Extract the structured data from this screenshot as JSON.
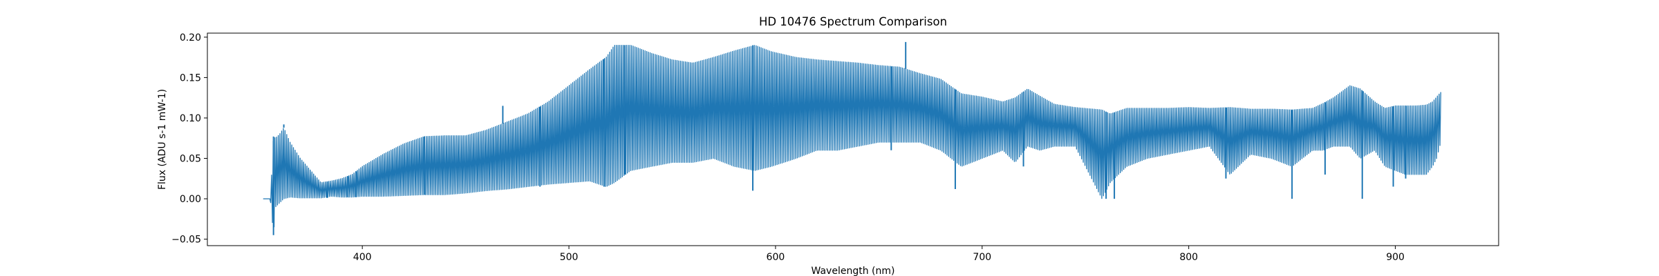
{
  "chart_data": {
    "type": "line",
    "title": "HD 10476 Spectrum Comparison",
    "xlabel": "Wavelength (nm)",
    "ylabel": "Flux (ADU s-1 mW-1)",
    "xlim": [
      325,
      950
    ],
    "ylim": [
      -0.058,
      0.205
    ],
    "xticks": [
      400,
      500,
      600,
      700,
      800,
      900
    ],
    "yticks": [
      -0.05,
      0.0,
      0.05,
      0.1,
      0.15,
      0.2
    ],
    "ytick_labels": [
      "−0.05",
      "0.00",
      "0.05",
      "0.10",
      "0.15",
      "0.20"
    ],
    "grid": false,
    "line_color": "#1f77b4",
    "series": [
      {
        "name": "",
        "envelope": {
          "wavelength_nm": [
            352,
            355.5,
            357,
            358,
            360,
            362,
            365,
            370,
            375,
            380,
            385,
            390,
            395,
            400,
            410,
            420,
            430,
            440,
            450,
            460,
            470,
            480,
            490,
            500,
            510,
            518,
            522,
            530,
            540,
            550,
            560,
            570,
            580,
            590,
            598,
            610,
            620,
            630,
            640,
            650,
            660,
            670,
            680,
            690,
            700,
            710,
            716,
            722,
            728,
            735,
            745,
            758,
            762,
            770,
            780,
            790,
            800,
            810,
            820,
            830,
            840,
            850,
            860,
            865,
            870,
            878,
            883,
            890,
            895,
            900,
            905,
            910,
            915,
            918,
            920,
            922
          ],
          "flux_upper": [
            0.0,
            0.0,
            0.077,
            0.075,
            0.08,
            0.088,
            0.07,
            0.05,
            0.035,
            0.02,
            0.022,
            0.025,
            0.03,
            0.04,
            0.055,
            0.068,
            0.077,
            0.078,
            0.078,
            0.085,
            0.095,
            0.105,
            0.12,
            0.14,
            0.16,
            0.175,
            0.19,
            0.19,
            0.18,
            0.172,
            0.168,
            0.175,
            0.183,
            0.19,
            0.182,
            0.175,
            0.172,
            0.17,
            0.168,
            0.165,
            0.163,
            0.155,
            0.148,
            0.13,
            0.126,
            0.12,
            0.125,
            0.136,
            0.127,
            0.117,
            0.113,
            0.11,
            0.105,
            0.112,
            0.112,
            0.112,
            0.113,
            0.112,
            0.113,
            0.111,
            0.111,
            0.11,
            0.112,
            0.118,
            0.125,
            0.14,
            0.136,
            0.12,
            0.112,
            0.115,
            0.115,
            0.115,
            0.116,
            0.12,
            0.126,
            0.132
          ],
          "flux_lower": [
            0.0,
            0.0,
            -0.045,
            -0.01,
            -0.005,
            0.0,
            0.002,
            0.001,
            0.001,
            0.001,
            0.003,
            0.002,
            0.002,
            0.003,
            0.003,
            0.004,
            0.005,
            0.005,
            0.007,
            0.01,
            0.012,
            0.015,
            0.018,
            0.02,
            0.022,
            0.015,
            0.02,
            0.035,
            0.04,
            0.045,
            0.045,
            0.05,
            0.04,
            0.035,
            0.04,
            0.05,
            0.06,
            0.06,
            0.065,
            0.07,
            0.07,
            0.07,
            0.06,
            0.04,
            0.05,
            0.06,
            0.045,
            0.065,
            0.06,
            0.065,
            0.065,
            0.0,
            0.02,
            0.04,
            0.05,
            0.055,
            0.06,
            0.065,
            0.03,
            0.055,
            0.05,
            0.04,
            0.06,
            0.06,
            0.065,
            0.065,
            0.05,
            0.06,
            0.04,
            0.035,
            0.03,
            0.03,
            0.03,
            0.04,
            0.05,
            0.07
          ]
        },
        "absorption_lines": [
          {
            "wavelength_nm": 357,
            "flux": -0.045
          },
          {
            "wavelength_nm": 383,
            "flux": 0.001
          },
          {
            "wavelength_nm": 393,
            "flux": 0.002
          },
          {
            "wavelength_nm": 397,
            "flux": 0.002
          },
          {
            "wavelength_nm": 430,
            "flux": 0.005
          },
          {
            "wavelength_nm": 486,
            "flux": 0.015
          },
          {
            "wavelength_nm": 517,
            "flux": 0.015
          },
          {
            "wavelength_nm": 527,
            "flux": 0.03
          },
          {
            "wavelength_nm": 589,
            "flux": 0.01
          },
          {
            "wavelength_nm": 656,
            "flux": 0.06
          },
          {
            "wavelength_nm": 687,
            "flux": 0.012
          },
          {
            "wavelength_nm": 720,
            "flux": 0.04
          },
          {
            "wavelength_nm": 760,
            "flux": 0.0
          },
          {
            "wavelength_nm": 764,
            "flux": 0.0
          },
          {
            "wavelength_nm": 818,
            "flux": 0.025
          },
          {
            "wavelength_nm": 850,
            "flux": 0.0
          },
          {
            "wavelength_nm": 866,
            "flux": 0.03
          },
          {
            "wavelength_nm": 884,
            "flux": 0.0
          },
          {
            "wavelength_nm": 899,
            "flux": 0.015
          },
          {
            "wavelength_nm": 905,
            "flux": 0.025
          }
        ],
        "emission_spikes": [
          {
            "wavelength_nm": 362,
            "flux": 0.092
          },
          {
            "wavelength_nm": 468,
            "flux": 0.115
          },
          {
            "wavelength_nm": 663,
            "flux": 0.194
          },
          {
            "wavelength_nm": 589,
            "flux": 0.19
          }
        ]
      }
    ]
  }
}
